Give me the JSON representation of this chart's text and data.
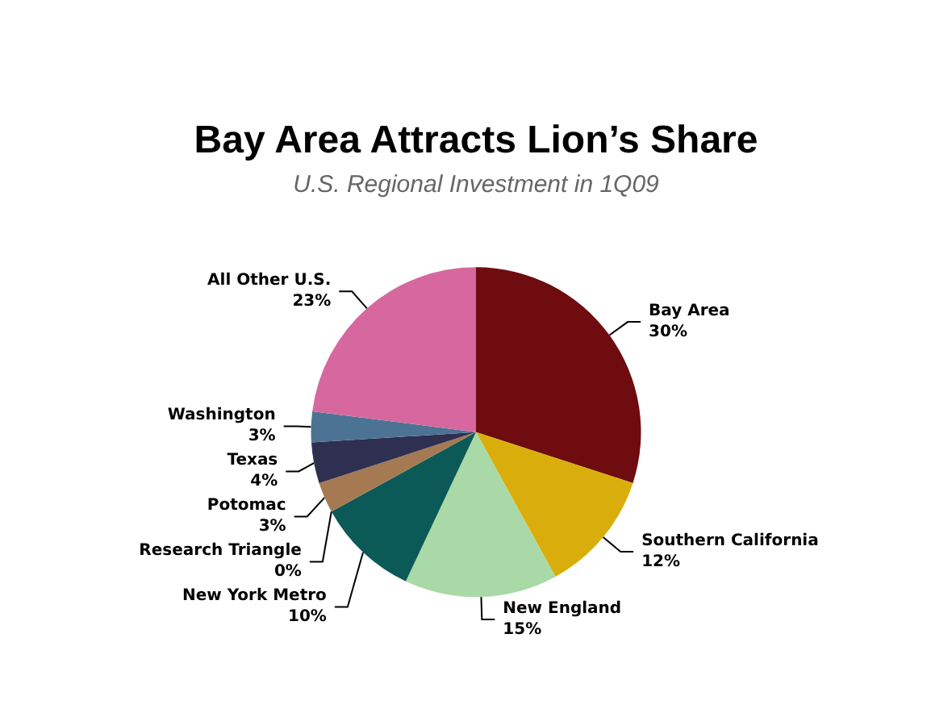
{
  "chart_data": {
    "type": "pie",
    "title": "Bay Area Attracts Lion’s Share",
    "subtitle": "U.S. Regional Investment in 1Q09",
    "categories": [
      "Bay Area",
      "Southern California",
      "New England",
      "New York Metro",
      "Research Triangle",
      "Potomac",
      "Texas",
      "Washington",
      "All Other U.S."
    ],
    "values": [
      30,
      12,
      15,
      10,
      0,
      3,
      4,
      3,
      23
    ],
    "value_labels": [
      "30%",
      "12%",
      "15%",
      "10%",
      "0%",
      "3%",
      "4%",
      "3%",
      "23%"
    ],
    "colors": [
      "#6e0c10",
      "#d9ae0c",
      "#a9d9a6",
      "#0b5a58",
      "#c9c79a",
      "#a57a52",
      "#2f2f52",
      "#4c7393",
      "#d6689f"
    ],
    "legend": false
  }
}
